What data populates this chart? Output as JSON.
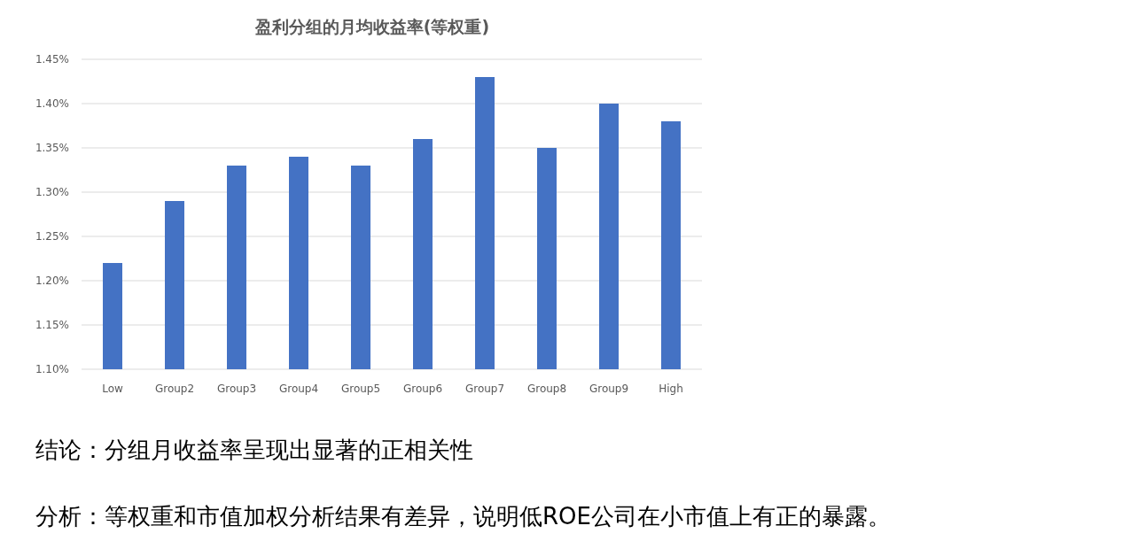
{
  "chart_data": {
    "type": "bar",
    "title": "盈利分组的月均收益率(等权重)",
    "categories": [
      "Low",
      "Group2",
      "Group3",
      "Group4",
      "Group5",
      "Group6",
      "Group7",
      "Group8",
      "Group9",
      "High"
    ],
    "values": [
      1.22,
      1.29,
      1.33,
      1.34,
      1.33,
      1.36,
      1.43,
      1.35,
      1.4,
      1.38
    ],
    "color": "#4472c4",
    "ylim": [
      1.1,
      1.45
    ],
    "yticks": [
      {
        "value": 1.1,
        "label": "1.10%"
      },
      {
        "value": 1.15,
        "label": "1.15%"
      },
      {
        "value": 1.2,
        "label": "1.20%"
      },
      {
        "value": 1.25,
        "label": "1.25%"
      },
      {
        "value": 1.3,
        "label": "1.30%"
      },
      {
        "value": 1.35,
        "label": "1.35%"
      },
      {
        "value": 1.4,
        "label": "1.40%"
      },
      {
        "value": 1.45,
        "label": "1.45%"
      }
    ],
    "grid": "y",
    "annotations": [
      "结论：分组月收益率呈现出显著的正相关性",
      "分析：等权重和市值加权分析结果有差异，说明低ROE公司在小市值上有正的暴露。"
    ]
  }
}
